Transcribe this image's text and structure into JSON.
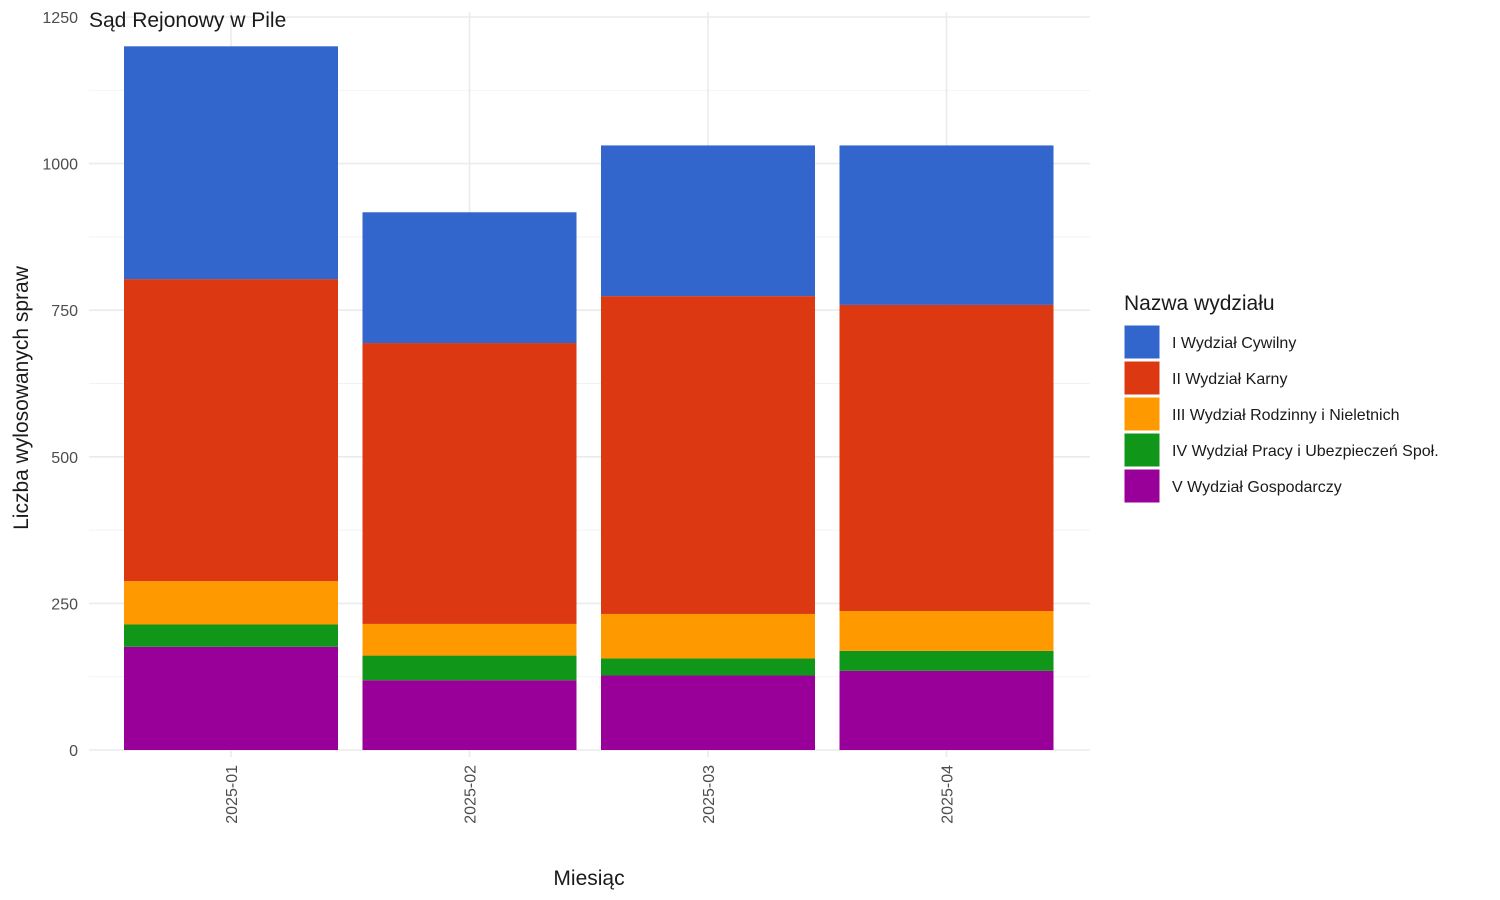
{
  "chart_data": {
    "type": "bar",
    "stacked": true,
    "title": "Sąd Rejonowy w Pile",
    "xlabel": "Miesiąc",
    "ylabel": "Liczba wylosowanych spraw",
    "ylim": [
      0,
      1250
    ],
    "yticks": [
      0,
      250,
      500,
      750,
      1000,
      1250
    ],
    "categories": [
      "2025-01",
      "2025-02",
      "2025-03",
      "2025-04"
    ],
    "legend": {
      "title": "Nazwa wydziału",
      "position": "right"
    },
    "grid": true,
    "series": [
      {
        "name": "V Wydział Gospodarczy",
        "color": "#990099",
        "values": [
          176,
          119,
          127,
          135
        ]
      },
      {
        "name": "IV Wydział Pracy i Ubezpieczeń Społ.",
        "color": "#109618",
        "values": [
          38,
          42,
          29,
          34
        ]
      },
      {
        "name": "III Wydział Rodzinny i Nieletnich",
        "color": "#FF9900",
        "values": [
          74,
          54,
          76,
          68
        ]
      },
      {
        "name": "II Wydział Karny",
        "color": "#DC3912",
        "values": [
          515,
          479,
          542,
          522
        ]
      },
      {
        "name": "I Wydział Cywilny",
        "color": "#3366CC",
        "values": [
          397,
          223,
          257,
          272
        ]
      }
    ],
    "legend_order": [
      "I Wydział Cywilny",
      "II Wydział Karny",
      "III Wydział Rodzinny i Nieletnich",
      "IV Wydział Pracy i Ubezpieczeń Społ.",
      "V Wydział Gospodarczy"
    ]
  }
}
